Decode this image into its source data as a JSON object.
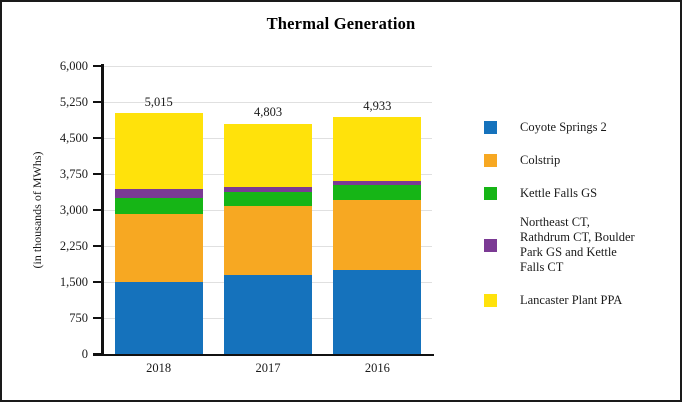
{
  "chart_data": {
    "type": "bar",
    "stacked": true,
    "title": "Thermal Generation",
    "xlabel": "",
    "ylabel": "(in thousands of MWhs)",
    "categories": [
      "2018",
      "2017",
      "2016"
    ],
    "series": [
      {
        "name": "Coyote Springs 2",
        "color": "#1572BC",
        "values": [
          1500,
          1645,
          1750
        ]
      },
      {
        "name": "Colstrip",
        "color": "#F7A822",
        "values": [
          1415,
          1440,
          1460
        ]
      },
      {
        "name": "Kettle Falls GS",
        "color": "#16B516",
        "values": [
          335,
          290,
          310
        ]
      },
      {
        "name": "Northeast CT, Rathdrum CT, Boulder Park GS and Kettle Falls CT",
        "color": "#7B3A94",
        "values": [
          190,
          105,
          85
        ]
      },
      {
        "name": "Lancaster Plant PPA",
        "color": "#FFE20B",
        "values": [
          1575,
          1323,
          1328
        ]
      }
    ],
    "totals": [
      "5,015",
      "4,803",
      "4,933"
    ],
    "ylim": [
      0,
      6000
    ],
    "ytick_step": 750,
    "yticks": [
      "0",
      "750",
      "1,500",
      "2,250",
      "3,000",
      "3,750",
      "4,500",
      "5,250",
      "6,000"
    ],
    "grid": true,
    "legend_position": "right"
  }
}
